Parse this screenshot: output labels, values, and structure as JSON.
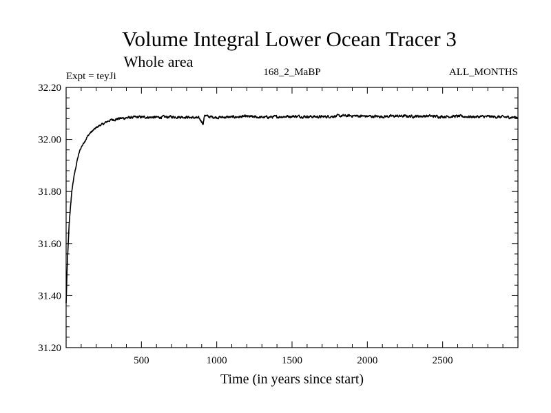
{
  "chart_data": {
    "type": "line",
    "title": "Volume Integral Lower Ocean Tracer 3",
    "subtitle": "Whole area",
    "expt_label": "Expt = teyJi",
    "center_label": "168_2_MaBP",
    "right_label": "ALL_MONTHS",
    "xlabel": "Time (in years since start)",
    "ylabel": "",
    "xlim": [
      0,
      3000
    ],
    "ylim": [
      31.2,
      32.2
    ],
    "x_ticks": [
      {
        "value": 500,
        "label": "500"
      },
      {
        "value": 1000,
        "label": "1000"
      },
      {
        "value": 1500,
        "label": "1500"
      },
      {
        "value": 2000,
        "label": "2000"
      },
      {
        "value": 2500,
        "label": "2500"
      }
    ],
    "y_ticks": [
      {
        "value": 31.2,
        "label": "31.20"
      },
      {
        "value": 31.4,
        "label": "31.40"
      },
      {
        "value": 31.6,
        "label": "31.60"
      },
      {
        "value": 31.8,
        "label": "31.80"
      },
      {
        "value": 32.0,
        "label": "32.00"
      },
      {
        "value": 32.2,
        "label": "32.20"
      }
    ],
    "series": [
      {
        "name": "Volume Integral Lower Ocean Tracer 3",
        "color": "#000000",
        "x": [
          0,
          5,
          10,
          20,
          30,
          40,
          50,
          60,
          70,
          80,
          90,
          100,
          110,
          125,
          140,
          160,
          180,
          200,
          225,
          250,
          275,
          300,
          350,
          400,
          450,
          500,
          600,
          700,
          800,
          880,
          900,
          910,
          920,
          940,
          1000,
          1100,
          1200,
          1300,
          1400,
          1500,
          1600,
          1700,
          1800,
          1900,
          2000,
          2100,
          2200,
          2300,
          2400,
          2500,
          2600,
          2700,
          2800,
          2900,
          3000
        ],
        "y": [
          31.37,
          31.47,
          31.55,
          31.67,
          31.75,
          31.81,
          31.85,
          31.88,
          31.91,
          31.935,
          31.955,
          31.97,
          31.98,
          31.995,
          32.01,
          32.025,
          32.035,
          32.045,
          32.055,
          32.06,
          32.07,
          32.075,
          32.08,
          32.083,
          32.085,
          32.086,
          32.085,
          32.087,
          32.086,
          32.082,
          32.07,
          32.06,
          32.095,
          32.088,
          32.085,
          32.086,
          32.088,
          32.085,
          32.087,
          32.089,
          32.088,
          32.087,
          32.09,
          32.091,
          32.089,
          32.088,
          32.09,
          32.089,
          32.09,
          32.088,
          32.089,
          32.087,
          32.088,
          32.086,
          32.085
        ]
      }
    ]
  }
}
